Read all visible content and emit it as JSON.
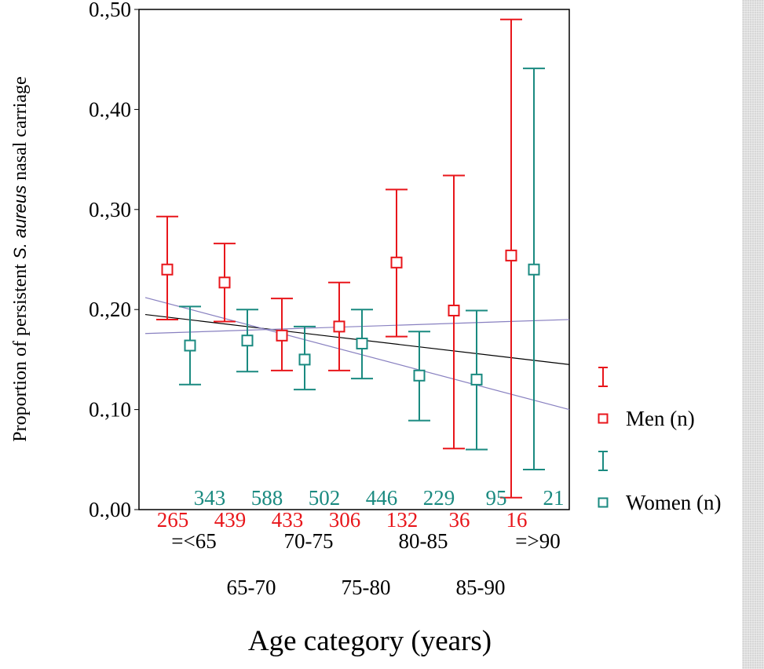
{
  "chart_data": {
    "type": "scatter",
    "title": "",
    "ylabel": {
      "prefix": "Proportion of persistent ",
      "italic": "S. aureus",
      "suffix": " nasal carriage"
    },
    "xlabel": "Age category (years)",
    "ylim": [
      0.0,
      0.5
    ],
    "yticks": [
      {
        "value": 0.0,
        "label": "0.,00"
      },
      {
        "value": 0.1,
        "label": "0.,10"
      },
      {
        "value": 0.2,
        "label": "0.,20"
      },
      {
        "value": 0.3,
        "label": "0.,30"
      },
      {
        "value": 0.4,
        "label": "0.,40"
      },
      {
        "value": 0.5,
        "label": "0.,50"
      }
    ],
    "categories": [
      "=<65",
      "65-70",
      "70-75",
      "75-80",
      "80-85",
      "85-90",
      "=>90"
    ],
    "series": [
      {
        "name": "Men (n)",
        "color": "#e8161b",
        "marker": "open-square",
        "values": [
          0.24,
          0.227,
          0.174,
          0.183,
          0.247,
          0.199,
          0.254
        ],
        "lower": [
          0.19,
          0.188,
          0.139,
          0.139,
          0.173,
          0.061,
          0.012
        ],
        "upper": [
          0.293,
          0.266,
          0.211,
          0.227,
          0.32,
          0.334,
          0.49
        ],
        "n": [
          "265",
          "439",
          "433",
          "306",
          "132",
          "36",
          "16"
        ]
      },
      {
        "name": "Women (n)",
        "color": "#1a8a80",
        "marker": "open-square",
        "values": [
          0.164,
          0.169,
          0.15,
          0.166,
          0.134,
          0.13,
          0.24
        ],
        "lower": [
          0.125,
          0.138,
          0.12,
          0.131,
          0.089,
          0.06,
          0.04
        ],
        "upper": [
          0.203,
          0.2,
          0.183,
          0.2,
          0.178,
          0.199,
          0.441
        ],
        "n": [
          "343",
          "588",
          "502",
          "446",
          "229",
          "95",
          "21"
        ]
      }
    ],
    "trend_lines": [
      {
        "color": "#000000",
        "y_start": 0.195,
        "y_end": 0.145
      },
      {
        "color": "#8880c0",
        "y_start": 0.212,
        "y_end": 0.1
      },
      {
        "color": "#8880c0",
        "y_start": 0.176,
        "y_end": 0.19
      }
    ],
    "legend": {
      "position": "right",
      "items": [
        {
          "label": "",
          "color": "#e8161b",
          "symbol": "error-bar"
        },
        {
          "label": "Men (n)",
          "color": "#e8161b",
          "symbol": "open-square"
        },
        {
          "label": "",
          "color": "#1a8a80",
          "symbol": "error-bar"
        },
        {
          "label": "Women (n)",
          "color": "#1a8a80",
          "symbol": "open-square"
        }
      ]
    }
  }
}
